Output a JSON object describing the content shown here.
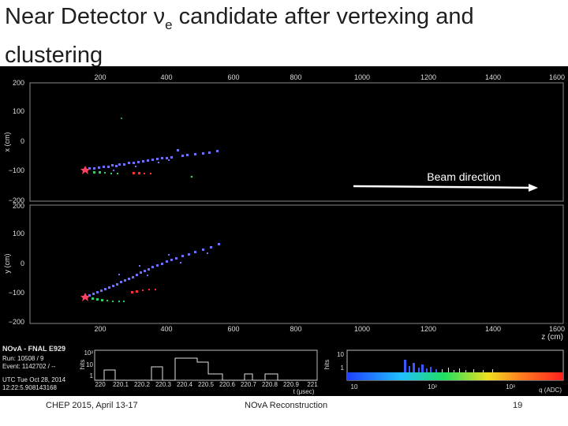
{
  "slide": {
    "title_main": "Near Detector ν",
    "title_sub": "e",
    "title_rest": " candidate after vertexing and clustering"
  },
  "event_display": {
    "z_axis": {
      "label": "z (cm)",
      "ticks": [
        "200",
        "400",
        "600",
        "800",
        "1000",
        "1200",
        "1400",
        "1600"
      ]
    },
    "xz_view": {
      "ylabel": "x (cm)",
      "ticks": [
        "200",
        "100",
        "0",
        "−100",
        "−200"
      ]
    },
    "yz_view": {
      "ylabel": "y (cm)",
      "ticks": [
        "200",
        "100",
        "0",
        "−100",
        "−200"
      ]
    },
    "annotation": {
      "text": "Beam direction"
    },
    "info": {
      "header": "NOvA - FNAL E929",
      "lines": [
        "Run:   10508 / 9",
        "Event:  1142702 / --",
        "UTC Tue Oct 28, 2014",
        "12:22:5.908143168"
      ]
    },
    "time_hist": {
      "ylabel": "hits",
      "yticks": [
        "10²",
        "10",
        "1"
      ],
      "xticks": [
        "220",
        "220.1",
        "220.2",
        "220.3",
        "220.4",
        "220.5",
        "220.6",
        "220.7",
        "220.8",
        "220.9",
        "221"
      ],
      "xlabel": "t (μsec)"
    },
    "charge_hist": {
      "ylabel": "hits",
      "yticks": [
        "10",
        "1"
      ],
      "xticks": [
        "10",
        "10²",
        "10³"
      ],
      "xlabel": "q (ADC)"
    }
  },
  "footer": {
    "left": "CHEP 2015,  April 13-17",
    "center": "NOvA Reconstruction",
    "page": "19"
  }
}
